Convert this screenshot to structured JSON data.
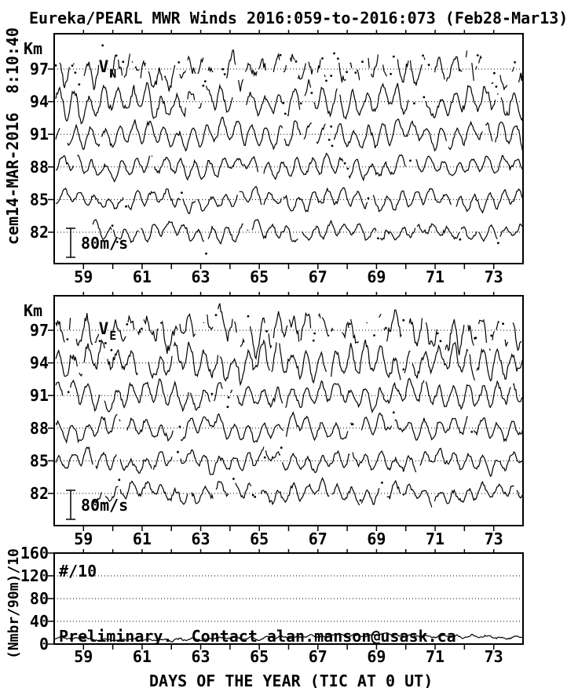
{
  "title": "Eureka/PEARL MWR Winds 2016:059-to-2016:073 (Feb28-Mar13)",
  "side_timestamp": "cem14-MAR-2016  8:10:40",
  "colors": {
    "ink": "#000000",
    "paper": "#ffffff"
  },
  "x_axis": {
    "title": "DAYS OF THE YEAR (TIC AT 0 UT)",
    "range": [
      58,
      74
    ],
    "tick_step_days": 1,
    "labeled_ticks": [
      59,
      61,
      63,
      65,
      67,
      69,
      71,
      73
    ]
  },
  "chart_data": [
    {
      "type": "line",
      "name": "northward-wind-panel",
      "panel_label": "V",
      "panel_label_sub": "N",
      "y_axis_label": "Km",
      "altitudes_km": [
        97,
        94,
        91,
        88,
        85,
        82
      ],
      "baseline_ms": 0,
      "scale_bar": {
        "label": "80m/s",
        "meters_per_second": 80
      },
      "x_range": [
        58,
        74
      ],
      "grid": "dotted baseline at each altitude",
      "series": [
        {
          "altitude_km": 97,
          "est_amplitude_ms": 50,
          "character": "fragmented, scattered dots",
          "gen": {
            "seed": 9701,
            "amp1": 26,
            "amp2": 12,
            "noise": 24,
            "gap": 0.55,
            "start": 58.05
          }
        },
        {
          "altitude_km": 94,
          "est_amplitude_ms": 45,
          "character": "semi-continuous",
          "gen": {
            "seed": 9402,
            "amp1": 30,
            "amp2": 14,
            "noise": 16,
            "gap": 0.16,
            "start": 58.05
          }
        },
        {
          "altitude_km": 91,
          "est_amplitude_ms": 35,
          "character": "continuous",
          "gen": {
            "seed": 9103,
            "amp1": 24,
            "amp2": 12,
            "noise": 11,
            "gap": 0.06,
            "start": 58.05
          }
        },
        {
          "altitude_km": 88,
          "est_amplitude_ms": 30,
          "character": "continuous",
          "gen": {
            "seed": 8804,
            "amp1": 20,
            "amp2": 11,
            "noise": 10,
            "gap": 0.05,
            "start": 58.05
          }
        },
        {
          "altitude_km": 85,
          "est_amplitude_ms": 28,
          "character": "continuous",
          "gen": {
            "seed": 8505,
            "amp1": 18,
            "amp2": 10,
            "noise": 9,
            "gap": 0.05,
            "start": 58.05
          }
        },
        {
          "altitude_km": 82,
          "est_amplitude_ms": 25,
          "character": "continuous, starts ~day 59.3",
          "gen": {
            "seed": 8206,
            "amp1": 15,
            "amp2": 9,
            "noise": 9,
            "gap": 0.08,
            "start": 59.3
          }
        }
      ]
    },
    {
      "type": "line",
      "name": "eastward-wind-panel",
      "panel_label": "V",
      "panel_label_sub": "E",
      "y_axis_label": "Km",
      "altitudes_km": [
        97,
        94,
        91,
        88,
        85,
        82
      ],
      "baseline_ms": 0,
      "scale_bar": {
        "label": "80m/s",
        "meters_per_second": 80
      },
      "x_range": [
        58,
        74
      ],
      "grid": "dotted baseline at each altitude",
      "series": [
        {
          "altitude_km": 97,
          "est_amplitude_ms": 55,
          "character": "fragmented, scattered dots",
          "gen": {
            "seed": 1971,
            "amp1": 30,
            "amp2": 14,
            "noise": 26,
            "gap": 0.5,
            "start": 58.05
          }
        },
        {
          "altitude_km": 94,
          "est_amplitude_ms": 50,
          "character": "semi-continuous",
          "gen": {
            "seed": 1942,
            "amp1": 32,
            "amp2": 15,
            "noise": 17,
            "gap": 0.15,
            "start": 58.05
          }
        },
        {
          "altitude_km": 91,
          "est_amplitude_ms": 40,
          "character": "continuous",
          "gen": {
            "seed": 1913,
            "amp1": 26,
            "amp2": 13,
            "noise": 12,
            "gap": 0.06,
            "start": 58.05
          }
        },
        {
          "altitude_km": 88,
          "est_amplitude_ms": 32,
          "character": "continuous",
          "gen": {
            "seed": 1884,
            "amp1": 21,
            "amp2": 12,
            "noise": 10,
            "gap": 0.05,
            "start": 58.05
          }
        },
        {
          "altitude_km": 85,
          "est_amplitude_ms": 30,
          "character": "continuous",
          "gen": {
            "seed": 1855,
            "amp1": 19,
            "amp2": 11,
            "noise": 10,
            "gap": 0.05,
            "start": 58.05
          }
        },
        {
          "altitude_km": 82,
          "est_amplitude_ms": 28,
          "character": "continuous, starts ~day 59.3",
          "gen": {
            "seed": 1826,
            "amp1": 17,
            "amp2": 10,
            "noise": 10,
            "gap": 0.08,
            "start": 59.3
          }
        }
      ]
    },
    {
      "type": "line",
      "name": "meteor-count-panel",
      "panel_label": "#/10",
      "y_axis_label": "(Nmbr/90m)/10",
      "y_range": [
        0,
        160
      ],
      "y_ticks": [
        0,
        40,
        80,
        120,
        160
      ],
      "dotted_gridlines": [
        40,
        80,
        120
      ],
      "annotation": "Preliminary.  Contact alan.manson@usask.ca",
      "x_range": [
        58,
        74
      ],
      "series": [
        {
          "name": "count_div10",
          "est_mean": 12,
          "est_range": [
            5,
            25
          ],
          "character": "low wiggly trace along bottom",
          "gen": {
            "seed": 777,
            "mean": 11.5,
            "swing": 4,
            "noise": 2.2
          }
        }
      ]
    }
  ]
}
